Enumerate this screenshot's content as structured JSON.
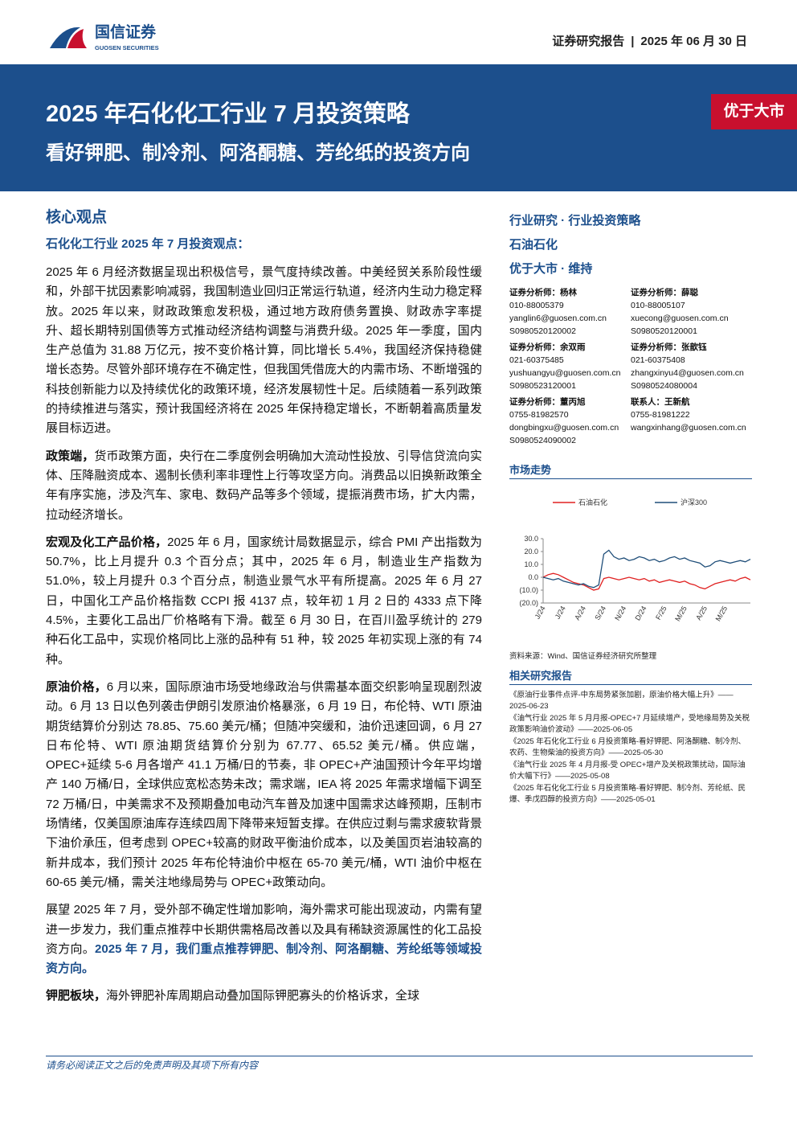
{
  "header": {
    "company": "国信证券",
    "company_en": "GUOSEN SECURITIES",
    "report_type": "证券研究报告",
    "date": "2025 年 06 月 30 日"
  },
  "banner": {
    "title": "2025 年石化化工行业 7 月投资策略",
    "subtitle": "看好钾肥、制冷剂、阿洛酮糖、芳纶纸的投资方向",
    "rating": "优于大市"
  },
  "main": {
    "heading": "核心观点",
    "subheading": "石化化工行业 2025 年 7 月投资观点：",
    "paragraphs": [
      {
        "text": "2025 年 6 月经济数据呈现出积极信号，景气度持续改善。中美经贸关系阶段性缓和，外部干扰因素影响减弱，我国制造业回归正常运行轨道，经济内生动力稳定释放。2025 年以来，财政政策愈发积极，通过地方政府债务置换、财政赤字率提升、超长期特别国债等方式推动经济结构调整与消费升级。2025 年一季度，国内生产总值为 31.88 万亿元，按不变价格计算，同比增长 5.4%，我国经济保持稳健增长态势。尽管外部环境存在不确定性，但我国凭借庞大的内需市场、不断增强的科技创新能力以及持续优化的政策环境，经济发展韧性十足。后续随着一系列政策的持续推进与落实，预计我国经济将在 2025 年保持稳定增长，不断朝着高质量发展目标迈进。"
      },
      {
        "lead": "政策端，",
        "text": "货币政策方面，央行在二季度例会明确加大流动性投放、引导信贷流向实体、压降融资成本、遏制长债利率非理性上行等攻坚方向。消费品以旧换新政策全年有序实施，涉及汽车、家电、数码产品等多个领域，提振消费市场，扩大内需，拉动经济增长。"
      },
      {
        "lead": "宏观及化工产品价格，",
        "text": "2025 年 6 月，国家统计局数据显示，综合 PMI 产出指数为 50.7%，比上月提升 0.3 个百分点；其中，2025 年 6 月，制造业生产指数为 51.0%，较上月提升 0.3 个百分点，制造业景气水平有所提高。2025 年 6 月 27 日，中国化工产品价格指数 CCPI 报 4137 点，较年初 1 月 2 日的 4333 点下降 4.5%，主要化工品出厂价格略有下滑。截至 6 月 30 日，在百川盈孚统计的 279 种石化工品中，实现价格同比上涨的品种有 51 种，较 2025 年初实现上涨的有 74 种。"
      },
      {
        "lead": "原油价格，",
        "text": "6 月以来，国际原油市场受地缘政治与供需基本面交织影响呈现剧烈波动。6 月 13 日以色列袭击伊朗引发原油价格暴涨，6 月 19 日，布伦特、WTI 原油期货结算价分别达 78.85、75.60 美元/桶；但随冲突缓和，油价迅速回调，6 月 27 日布伦特、WTI 原油期货结算价分别为 67.77、65.52 美元/桶。供应端，OPEC+延续 5-6 月各增产 41.1 万桶/日的节奏，非 OPEC+产油国预计今年平均增产 140 万桶/日，全球供应宽松态势未改；需求端，IEA 将 2025 年需求增幅下调至 72 万桶/日，中美需求不及预期叠加电动汽车普及加速中国需求达峰预期，压制市场情绪，仅美国原油库存连续四周下降带来短暂支撑。在供应过剩与需求疲软背景下油价承压，但考虑到 OPEC+较高的财政平衡油价成本，以及美国页岩油较高的新井成本，我们预计 2025 年布伦特油价中枢在 65-70 美元/桶，WTI 油价中枢在 60-65 美元/桶，需关注地缘局势与 OPEC+政策动向。"
      },
      {
        "text": "展望 2025 年 7 月，受外部不确定性增加影响，海外需求可能出现波动，内需有望进一步发力，我们重点推荐中长期供需格局改善以及具有稀缺资源属性的化工品投资方向。",
        "emphasis": "2025 年 7 月，我们重点推荐钾肥、制冷剂、阿洛酮糖、芳纶纸等领域投资方向。"
      },
      {
        "lead": "钾肥板块，",
        "text": "海外钾肥补库周期启动叠加国际钾肥寡头的价格诉求，全球"
      }
    ]
  },
  "side": {
    "tags": [
      "行业研究 · 行业投资策略",
      "石油石化",
      "优于大市 · 维持"
    ],
    "analysts": [
      {
        "role": "证券分析师：杨林",
        "phone": "010-88005379",
        "email": "yanglin6@guosen.com.cn",
        "cert": "S0980520120002"
      },
      {
        "role": "证券分析师：薛聪",
        "phone": "010-88005107",
        "email": "xuecong@guosen.com.cn",
        "cert": "S0980520120001"
      },
      {
        "role": "证券分析师：余双雨",
        "phone": "021-60375485",
        "email": "yushuangyu@guosen.com.cn",
        "cert": "S0980523120001"
      },
      {
        "role": "证券分析师：张歆钰",
        "phone": "021-60375408",
        "email": "zhangxinyu4@guosen.com.cn",
        "cert": "S0980524080004"
      },
      {
        "role": "证券分析师：董丙旭",
        "phone": "0755-81982570",
        "email": "dongbingxu@guosen.com.cn",
        "cert": "S0980524090002"
      },
      {
        "role": "联系人：王新航",
        "phone": "0755-81981222",
        "email": "wangxinhang@guosen.com.cn"
      }
    ],
    "market_title": "市场走势",
    "market_source": "资料来源：Wind、国信证券经济研究所整理",
    "related_title": "相关研究报告",
    "related": [
      {
        "title": "《原油行业事件点评-中东局势紧张加剧，原油价格大幅上升》",
        "date": "——2025-06-23"
      },
      {
        "title": "《油气行业 2025 年 5 月月报-OPEC+7 月延续增产，受地缘局势及关税政策影响油价波动》",
        "date": "——2025-06-05"
      },
      {
        "title": "《2025 年石化化工行业 6 月投资策略-看好钾肥、阿洛酮糖、制冷剂、农药、生物柴油的投资方向》",
        "date": "——2025-05-30"
      },
      {
        "title": "《油气行业 2025 年 4 月月报-受 OPEC+增产及关税政策扰动，国际油价大幅下行》",
        "date": "——2025-05-08"
      },
      {
        "title": "《2025 年石化化工行业 5 月投资策略-看好钾肥、制冷剂、芳纶纸、民爆、季戊四醇的投资方向》",
        "date": "——2025-05-01"
      }
    ]
  },
  "footer": {
    "disclaimer": "请务必阅读正文之后的免责声明及其项下所有内容"
  },
  "chart_data": {
    "type": "line",
    "categories": [
      "J/24",
      null,
      null,
      null,
      "J/24",
      null,
      null,
      null,
      "A/24",
      null,
      null,
      null,
      "S/24",
      null,
      null,
      null,
      "N/24",
      null,
      null,
      null,
      "D/24",
      null,
      null,
      null,
      "F/25",
      null,
      null,
      null,
      "M/25",
      null,
      null,
      null,
      "A/25",
      null,
      null,
      null,
      "M/25",
      null,
      null,
      null,
      null,
      null
    ],
    "series": [
      {
        "name": "石油石化",
        "color": "#e02020",
        "values": [
          0,
          2,
          3,
          2,
          0,
          -2,
          -4,
          -5,
          -6,
          -8,
          -10,
          -9,
          -1,
          0,
          -1,
          -2,
          -1,
          0,
          -1,
          -2,
          -1,
          -3,
          -2,
          -4,
          -3,
          -2,
          -3,
          -4,
          -3,
          -5,
          -6,
          -8,
          -9,
          -7,
          -5,
          -4,
          -3,
          -2,
          -3,
          -1,
          0,
          -2
        ]
      },
      {
        "name": "沪深300",
        "color": "#1f4e79",
        "values": [
          0,
          -1,
          -2,
          -1,
          -3,
          -4,
          -5,
          -6,
          -5,
          -7,
          -8,
          -6,
          18,
          21,
          16,
          14,
          15,
          13,
          14,
          16,
          15,
          13,
          14,
          12,
          13,
          15,
          16,
          14,
          15,
          13,
          12,
          11,
          8,
          9,
          12,
          13,
          12,
          11,
          12,
          13,
          12,
          14
        ]
      }
    ],
    "ylim": [
      -20,
      30
    ],
    "yticks": [
      {
        "value": 30,
        "label": "30.0"
      },
      {
        "value": 20,
        "label": "20.0"
      },
      {
        "value": 10,
        "label": "10.0"
      },
      {
        "value": 0,
        "label": "0.0"
      },
      {
        "value": -10,
        "label": "(10.0)"
      },
      {
        "value": -20,
        "label": "(20.0)"
      }
    ]
  }
}
